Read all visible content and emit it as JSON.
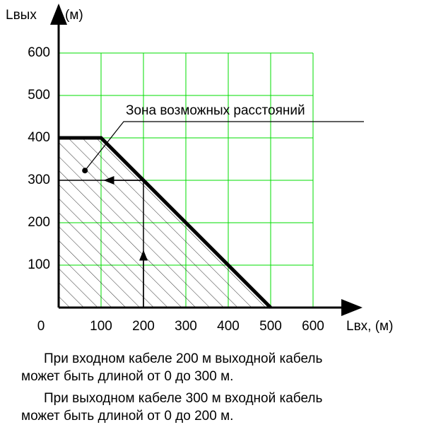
{
  "chart_data": {
    "type": "line",
    "xlabel": "Lвх, (м)",
    "ylabel": "Lвых",
    "yunit": "(м)",
    "x": [
      0,
      100,
      500
    ],
    "series": [
      {
        "name": "Зона возможных расстояний",
        "color": "#000000",
        "values": [
          400,
          400,
          0
        ]
      }
    ],
    "annotation": {
      "text": "Зона возможных расстояний",
      "x": 62,
      "y": 323
    },
    "example": {
      "x": 200,
      "y": 300
    },
    "xlim": [
      0,
      600
    ],
    "ylim": [
      0,
      600
    ],
    "xticks": [
      0,
      100,
      200,
      300,
      400,
      500,
      600
    ],
    "yticks": [
      100,
      200,
      300,
      400,
      500,
      600
    ],
    "grid": true,
    "grid_color": "#00dd00"
  },
  "notes": [
    "При входном кабеле 200 м выходной кабель",
    "может быть длиной от 0 до 300 м.",
    "При выходном кабеле 300 м входной кабель",
    "может быть длиной от 0 до 200 м."
  ]
}
